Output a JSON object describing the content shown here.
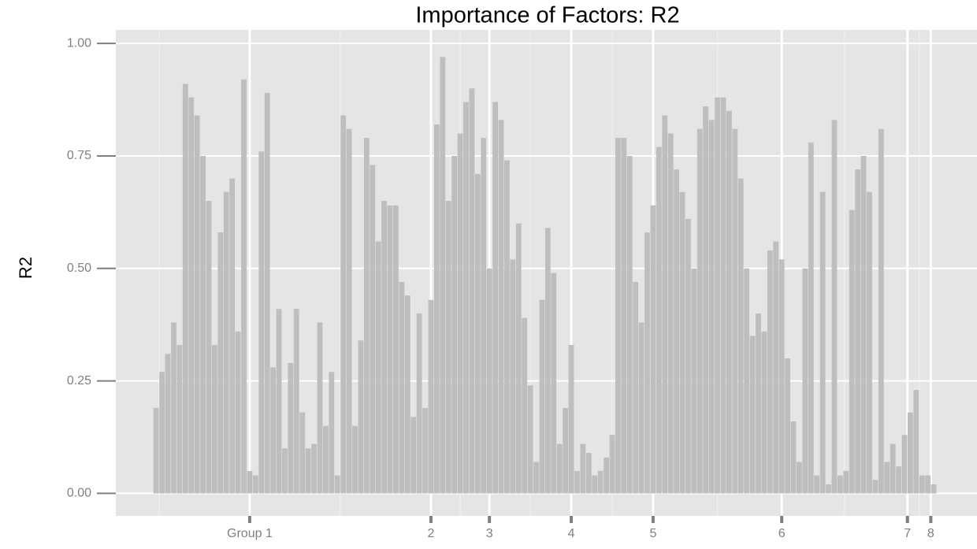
{
  "chart_data": {
    "type": "bar",
    "title": "Importance of Factors: R2",
    "y_label": "R2",
    "x": [
      1,
      2,
      3,
      4,
      5,
      6,
      7,
      8,
      9,
      10,
      11,
      12,
      13,
      14,
      15,
      16,
      17,
      18,
      19,
      20,
      21,
      22,
      23,
      24,
      25,
      26,
      27,
      28,
      29,
      30,
      31,
      32,
      33,
      34,
      35,
      36,
      37,
      38,
      39,
      40,
      41,
      42,
      43,
      44,
      45,
      46,
      47,
      48,
      49,
      50,
      51,
      52,
      53,
      54,
      55,
      56,
      57,
      58,
      59,
      60,
      61,
      62,
      63,
      64,
      65,
      66,
      67,
      68,
      69,
      70,
      71,
      72,
      73,
      74,
      75,
      76,
      77,
      78,
      79,
      80,
      81,
      82,
      83,
      84,
      85,
      86,
      87,
      88,
      89,
      90,
      91,
      92,
      93,
      94,
      95,
      96,
      97,
      98,
      99,
      100,
      101,
      102,
      103,
      104,
      105,
      106,
      107,
      108,
      109,
      110,
      111,
      112,
      113,
      114,
      115,
      116,
      117,
      118,
      119,
      120,
      121,
      122,
      123,
      124,
      125,
      126,
      127,
      128,
      129,
      130,
      131,
      132,
      133,
      134
    ],
    "values": [
      0.19,
      0.27,
      0.31,
      0.38,
      0.33,
      0.91,
      0.88,
      0.84,
      0.75,
      0.65,
      0.33,
      0.58,
      0.67,
      0.7,
      0.36,
      0.92,
      0.05,
      0.04,
      0.76,
      0.89,
      0.28,
      0.41,
      0.1,
      0.29,
      0.41,
      0.18,
      0.1,
      0.11,
      0.38,
      0.15,
      0.27,
      0.04,
      0.84,
      0.81,
      0.15,
      0.34,
      0.79,
      0.73,
      0.56,
      0.65,
      0.64,
      0.64,
      0.47,
      0.44,
      0.17,
      0.4,
      0.19,
      0.43,
      0.82,
      0.97,
      0.65,
      0.75,
      0.8,
      0.87,
      0.9,
      0.71,
      0.79,
      0.5,
      0.87,
      0.83,
      0.74,
      0.52,
      0.6,
      0.39,
      0.24,
      0.07,
      0.43,
      0.59,
      0.49,
      0.11,
      0.19,
      0.33,
      0.05,
      0.11,
      0.09,
      0.04,
      0.05,
      0.08,
      0.13,
      0.79,
      0.79,
      0.75,
      0.47,
      0.38,
      0.58,
      0.64,
      0.77,
      0.84,
      0.8,
      0.72,
      0.67,
      0.61,
      0.5,
      0.81,
      0.86,
      0.83,
      0.88,
      0.88,
      0.85,
      0.81,
      0.7,
      0.5,
      0.35,
      0.4,
      0.36,
      0.54,
      0.56,
      0.52,
      0.3,
      0.16,
      0.07,
      0.5,
      0.78,
      0.04,
      0.67,
      0.02,
      0.83,
      0.04,
      0.05,
      0.63,
      0.72,
      0.75,
      0.67,
      0.03,
      0.81,
      0.07,
      0.11,
      0.06,
      0.13,
      0.18,
      0.23,
      0.04,
      0.04,
      0.02
    ],
    "color": "#bebebe",
    "xlim": [
      -5.9,
      141.4
    ],
    "xticks": [
      {
        "value": 17,
        "label": "Group 1"
      },
      {
        "value": 48,
        "label": "2"
      },
      {
        "value": 58,
        "label": "3"
      },
      {
        "value": 72,
        "label": "4"
      },
      {
        "value": 86,
        "label": "5"
      },
      {
        "value": 108,
        "label": "6"
      },
      {
        "value": 129.5,
        "label": "7"
      },
      {
        "value": 133.5,
        "label": "8"
      }
    ],
    "ylim": [
      -0.05,
      1.03
    ],
    "yticks": [
      {
        "value": 0,
        "label": "0.00"
      },
      0.25,
      {
        "value": 0.5,
        "label": "0.50"
      },
      0.75,
      {
        "value": 1,
        "label": "1.00"
      }
    ],
    "grid": true
  }
}
